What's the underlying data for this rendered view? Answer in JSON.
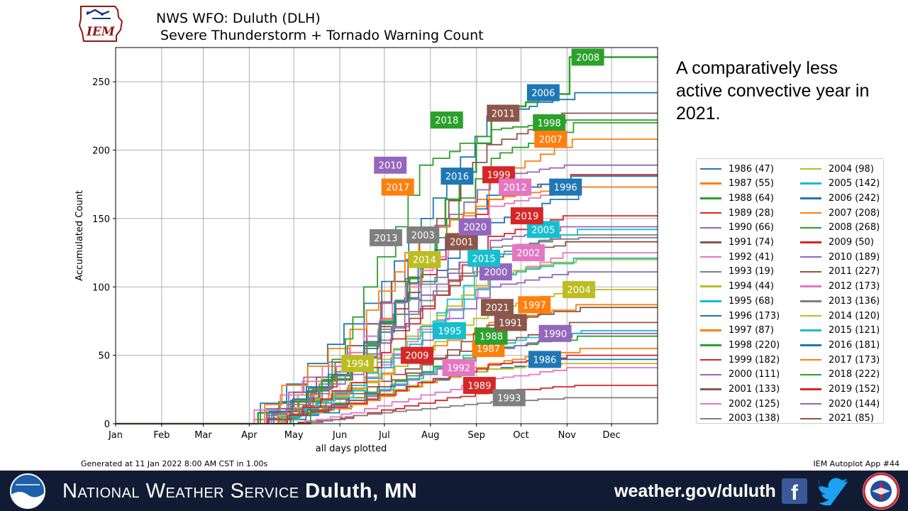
{
  "logo": {
    "text": "IEM"
  },
  "header": {
    "title_line1": "NWS WFO: Duluth (DLH)",
    "title_line2": " Severe Thunderstorm + Tornado Warning Count"
  },
  "side_note": "A comparatively less active convective year in 2021.",
  "generated": "Generated at 11 Jan 2022 8:00 AM CST in 1.00s",
  "app_label": "IEM Autoplot App #44",
  "footer": {
    "office_prefix": "National Weather Service",
    "office_name": "Duluth, MN",
    "website": "weather.gov/duluth",
    "facebook_icon": "facebook-icon",
    "twitter_icon": "twitter-icon",
    "noaa_logo": "noaa-logo",
    "nws_logo": "nws-logo",
    "background": "#111c34"
  },
  "chart_data": {
    "type": "line",
    "title": "NWS WFO: Duluth (DLH)\n Severe Thunderstorm + Tornado Warning Count",
    "xlabel": "all days plotted",
    "ylabel": "Accumulated Count",
    "xlim": [
      1,
      366
    ],
    "ylim": [
      0,
      275
    ],
    "yticks": [
      0,
      50,
      100,
      150,
      200,
      250
    ],
    "xticks": [
      {
        "day": 1,
        "label": "Jan"
      },
      {
        "day": 32,
        "label": "Feb"
      },
      {
        "day": 60,
        "label": "Mar"
      },
      {
        "day": 91,
        "label": "Apr"
      },
      {
        "day": 121,
        "label": "May"
      },
      {
        "day": 152,
        "label": "Jun"
      },
      {
        "day": 182,
        "label": "Jul"
      },
      {
        "day": 213,
        "label": "Aug"
      },
      {
        "day": 244,
        "label": "Sep"
      },
      {
        "day": 274,
        "label": "Oct"
      },
      {
        "day": 305,
        "label": "Nov"
      },
      {
        "day": 335,
        "label": "Dec"
      }
    ],
    "grid": true,
    "legend_position": "right",
    "series": [
      {
        "name": "1986 (47)",
        "year": "1986",
        "total": 47,
        "color": "#1f77b4",
        "start": 115,
        "curve": [
          0.3,
          0.65,
          0.85,
          0.95
        ],
        "label_day": 290,
        "label_value": 47
      },
      {
        "name": "1987 (55)",
        "year": "1987",
        "total": 55,
        "color": "#ff7f0e",
        "start": 90,
        "curve": [
          0.25,
          0.55,
          0.8,
          0.95
        ],
        "label_day": 252,
        "label_value": 55
      },
      {
        "name": "1988 (64)",
        "year": "1988",
        "total": 64,
        "color": "#2ca02c",
        "start": 110,
        "curve": [
          0.3,
          0.6,
          0.85,
          0.95
        ],
        "label_day": 254,
        "label_value": 64
      },
      {
        "name": "1989 (28)",
        "year": "1989",
        "total": 28,
        "color": "#d62728",
        "start": 120,
        "curve": [
          0.2,
          0.55,
          0.85,
          0.95
        ],
        "label_day": 246,
        "label_value": 28
      },
      {
        "name": "1990 (66)",
        "year": "1990",
        "total": 66,
        "color": "#9467bd",
        "start": 100,
        "curve": [
          0.25,
          0.55,
          0.8,
          0.95
        ],
        "label_day": 297,
        "label_value": 66
      },
      {
        "name": "1991 (74)",
        "year": "1991",
        "total": 74,
        "color": "#8c564b",
        "start": 95,
        "curve": [
          0.3,
          0.6,
          0.8,
          0.92
        ],
        "label_day": 267,
        "label_value": 74
      },
      {
        "name": "1992 (41)",
        "year": "1992",
        "total": 41,
        "color": "#e377c2",
        "start": 125,
        "curve": [
          0.2,
          0.5,
          0.8,
          0.95
        ],
        "label_day": 232,
        "label_value": 41
      },
      {
        "name": "1993 (19)",
        "year": "1993",
        "total": 19,
        "color": "#7f7f7f",
        "start": 130,
        "curve": [
          0.3,
          0.6,
          0.85,
          0.95
        ],
        "label_day": 266,
        "label_value": 19
      },
      {
        "name": "1994 (44)",
        "year": "1994",
        "total": 44,
        "color": "#bcbd22",
        "start": 105,
        "curve": [
          0.35,
          0.7,
          0.9,
          0.98
        ],
        "label_day": 164,
        "label_value": 44
      },
      {
        "name": "1995 (68)",
        "year": "1995",
        "total": 68,
        "color": "#17becf",
        "start": 110,
        "curve": [
          0.25,
          0.55,
          0.85,
          0.97
        ],
        "label_day": 226,
        "label_value": 68
      },
      {
        "name": "1996 (173)",
        "year": "1996",
        "total": 173,
        "color": "#1f77b4",
        "start": 100,
        "curve": [
          0.25,
          0.6,
          0.85,
          0.95
        ],
        "label_day": 304,
        "label_value": 173
      },
      {
        "name": "1997 (87)",
        "year": "1997",
        "total": 87,
        "color": "#ff7f0e",
        "start": 105,
        "curve": [
          0.3,
          0.6,
          0.85,
          0.95
        ],
        "label_day": 283,
        "label_value": 87
      },
      {
        "name": "1998 (220)",
        "year": "1998",
        "total": 220,
        "color": "#2ca02c",
        "start": 110,
        "curve": [
          0.2,
          0.55,
          0.88,
          0.97
        ],
        "label_day": 293,
        "label_value": 220
      },
      {
        "name": "1999 (182)",
        "year": "1999",
        "total": 182,
        "color": "#d62728",
        "start": 115,
        "curve": [
          0.25,
          0.6,
          0.9,
          0.98
        ],
        "label_day": 259,
        "label_value": 182
      },
      {
        "name": "2000 (111)",
        "year": "2000",
        "total": 111,
        "color": "#9467bd",
        "start": 100,
        "curve": [
          0.25,
          0.55,
          0.9,
          0.98
        ],
        "label_day": 257,
        "label_value": 111
      },
      {
        "name": "2001 (133)",
        "year": "2001",
        "total": 133,
        "color": "#8c564b",
        "start": 105,
        "curve": [
          0.3,
          0.65,
          0.92,
          0.98
        ],
        "label_day": 234,
        "label_value": 133
      },
      {
        "name": "2002 (125)",
        "year": "2002",
        "total": 125,
        "color": "#e377c2",
        "start": 110,
        "curve": [
          0.2,
          0.55,
          0.85,
          0.97
        ],
        "label_day": 279,
        "label_value": 125
      },
      {
        "name": "2003 (138)",
        "year": "2003",
        "total": 138,
        "color": "#7f7f7f",
        "start": 100,
        "curve": [
          0.3,
          0.65,
          0.9,
          0.98
        ],
        "label_day": 208,
        "label_value": 138
      },
      {
        "name": "2004 (98)",
        "year": "2004",
        "total": 98,
        "color": "#bcbd22",
        "start": 110,
        "curve": [
          0.25,
          0.55,
          0.85,
          0.97
        ],
        "label_day": 313,
        "label_value": 98
      },
      {
        "name": "2005 (142)",
        "year": "2005",
        "total": 142,
        "color": "#17becf",
        "start": 115,
        "curve": [
          0.2,
          0.5,
          0.85,
          0.97
        ],
        "label_day": 289,
        "label_value": 142
      },
      {
        "name": "2006 (242)",
        "year": "2006",
        "total": 242,
        "color": "#1f77b4",
        "start": 95,
        "curve": [
          0.3,
          0.62,
          0.93,
          0.98
        ],
        "label_day": 289,
        "label_value": 242
      },
      {
        "name": "2007 (208)",
        "year": "2007",
        "total": 208,
        "color": "#ff7f0e",
        "start": 110,
        "curve": [
          0.25,
          0.55,
          0.85,
          0.97
        ],
        "label_day": 294,
        "label_value": 208
      },
      {
        "name": "2008 (268)",
        "year": "2008",
        "total": 268,
        "color": "#2ca02c",
        "start": 91,
        "curve": [
          0.15,
          0.46,
          0.84,
          0.9
        ],
        "label_day": 319,
        "label_value": 268
      },
      {
        "name": "2009 (50)",
        "year": "2009",
        "total": 50,
        "color": "#d62728",
        "start": 100,
        "curve": [
          0.3,
          0.6,
          0.85,
          0.96
        ],
        "label_day": 204,
        "label_value": 50
      },
      {
        "name": "2010 (189)",
        "year": "2010",
        "total": 189,
        "color": "#9467bd",
        "start": 95,
        "curve": [
          0.3,
          0.72,
          0.95,
          0.99
        ],
        "label_day": 186,
        "label_value": 189
      },
      {
        "name": "2011 (227)",
        "year": "2011",
        "total": 227,
        "color": "#8c564b",
        "start": 105,
        "curve": [
          0.25,
          0.6,
          0.9,
          0.98
        ],
        "label_day": 262,
        "label_value": 227
      },
      {
        "name": "2012 (173)",
        "year": "2012",
        "total": 173,
        "color": "#e377c2",
        "start": 90,
        "curve": [
          0.3,
          0.65,
          0.92,
          0.98
        ],
        "label_day": 270,
        "label_value": 173
      },
      {
        "name": "2013 (136)",
        "year": "2013",
        "total": 136,
        "color": "#7f7f7f",
        "start": 115,
        "curve": [
          0.35,
          0.75,
          0.95,
          0.99
        ],
        "label_day": 183,
        "label_value": 136
      },
      {
        "name": "2014 (120)",
        "year": "2014",
        "total": 120,
        "color": "#bcbd22",
        "start": 105,
        "curve": [
          0.25,
          0.6,
          0.9,
          0.98
        ],
        "label_day": 209,
        "label_value": 120
      },
      {
        "name": "2015 (121)",
        "year": "2015",
        "total": 121,
        "color": "#17becf",
        "start": 110,
        "curve": [
          0.2,
          0.55,
          0.88,
          0.97
        ],
        "label_day": 249,
        "label_value": 121
      },
      {
        "name": "2016 (181)",
        "year": "2016",
        "total": 181,
        "color": "#1f77b4",
        "start": 100,
        "curve": [
          0.25,
          0.65,
          0.92,
          0.98
        ],
        "label_day": 231,
        "label_value": 181
      },
      {
        "name": "2017 (173)",
        "year": "2017",
        "total": 173,
        "color": "#ff7f0e",
        "start": 95,
        "curve": [
          0.4,
          0.8,
          0.95,
          0.99
        ],
        "label_day": 191,
        "label_value": 173
      },
      {
        "name": "2018 (222)",
        "year": "2018",
        "total": 222,
        "color": "#2ca02c",
        "start": 130,
        "curve": [
          0.35,
          0.85,
          0.97,
          0.99
        ],
        "label_day": 224,
        "label_value": 222
      },
      {
        "name": "2019 (152)",
        "year": "2019",
        "total": 152,
        "color": "#d62728",
        "start": 110,
        "curve": [
          0.2,
          0.55,
          0.9,
          0.98
        ],
        "label_day": 278,
        "label_value": 152
      },
      {
        "name": "2020 (144)",
        "year": "2020",
        "total": 144,
        "color": "#9467bd",
        "start": 100,
        "curve": [
          0.25,
          0.65,
          0.93,
          0.98
        ],
        "label_day": 243,
        "label_value": 144
      },
      {
        "name": "2021 (85)",
        "year": "2021",
        "total": 85,
        "color": "#8c564b",
        "start": 100,
        "curve": [
          0.2,
          0.5,
          0.85,
          0.96
        ],
        "label_day": 258,
        "label_value": 85
      }
    ]
  }
}
